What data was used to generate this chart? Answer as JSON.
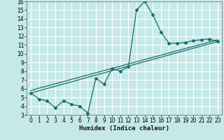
{
  "title": "",
  "xlabel": "Humidex (Indice chaleur)",
  "xlim": [
    -0.5,
    23.5
  ],
  "ylim": [
    3,
    16
  ],
  "xticks": [
    0,
    1,
    2,
    3,
    4,
    5,
    6,
    7,
    8,
    9,
    10,
    11,
    12,
    13,
    14,
    15,
    16,
    17,
    18,
    19,
    20,
    21,
    22,
    23
  ],
  "yticks": [
    3,
    4,
    5,
    6,
    7,
    8,
    9,
    10,
    11,
    12,
    13,
    14,
    15,
    16
  ],
  "bg_color": "#c5e8e8",
  "line_color": "#1a6b6b",
  "grid_color": "#aacccc",
  "data_x": [
    0,
    1,
    2,
    3,
    4,
    5,
    6,
    7,
    8,
    9,
    10,
    11,
    12,
    13,
    14,
    15,
    16,
    17,
    18,
    19,
    20,
    21,
    22,
    23
  ],
  "data_y": [
    5.5,
    4.8,
    4.6,
    3.8,
    4.6,
    4.2,
    4.0,
    3.2,
    7.2,
    6.5,
    8.3,
    8.0,
    8.5,
    15.0,
    16.0,
    14.5,
    12.5,
    11.2,
    11.2,
    11.3,
    11.5,
    11.6,
    11.7,
    11.4
  ],
  "trend1_x": [
    0,
    23
  ],
  "trend1_y": [
    5.5,
    11.4
  ],
  "trend2_x": [
    0,
    23
  ],
  "trend2_y": [
    5.8,
    11.6
  ],
  "tick_fontsize": 5.5,
  "xlabel_fontsize": 6.5
}
